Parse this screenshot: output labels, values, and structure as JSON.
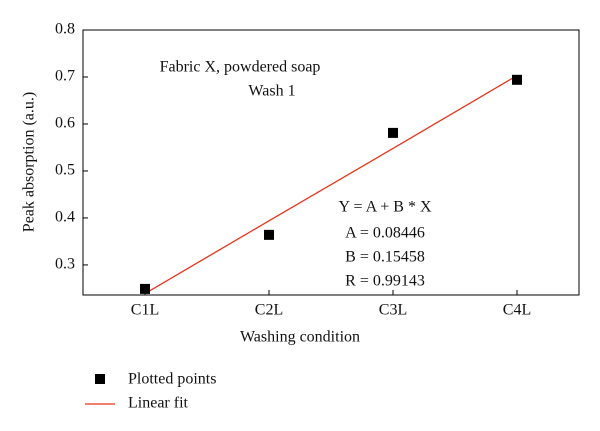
{
  "chart_data": {
    "type": "scatter-fit",
    "x_label": "Washing condition",
    "y_label": "Peak absorption (a.u.)",
    "categories": [
      "C1L",
      "C2L",
      "C3L",
      "C4L"
    ],
    "series": [
      {
        "name": "Plotted points",
        "color": "#000000",
        "values": [
          0.249,
          0.364,
          0.581,
          0.694
        ]
      },
      {
        "name": "Linear fit",
        "color": "#e8341c",
        "values": [
          0.239,
          0.394,
          0.548,
          0.703
        ]
      }
    ],
    "ylim": [
      0.236,
      0.8
    ],
    "yticks": [
      0.3,
      0.4,
      0.5,
      0.6,
      0.7,
      0.8
    ],
    "annotations": [
      "Fabric X, powdered soap",
      "Wash 1",
      "Y = A + B * X",
      "A = 0.08446",
      "B = 0.15458",
      "R = 0.99143"
    ]
  }
}
